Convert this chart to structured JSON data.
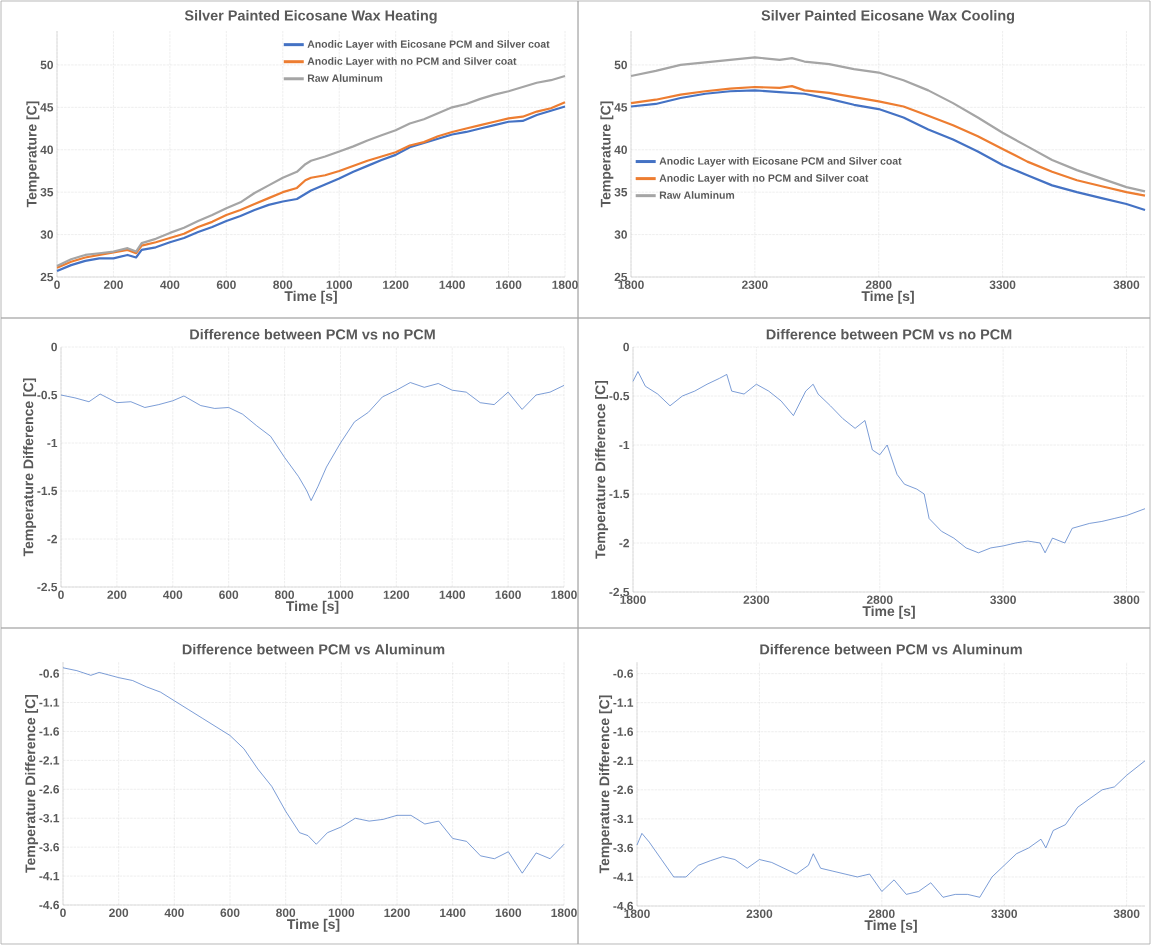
{
  "chart_data": [
    {
      "type": "line",
      "title": "Silver Painted Eicosane Wax Heating",
      "xlabel": "Time [s]",
      "ylabel": "Temperature [C]",
      "xlim": [
        0,
        1800
      ],
      "ylim": [
        25,
        54
      ],
      "xticks": [
        0,
        200,
        400,
        600,
        800,
        1000,
        1200,
        1400,
        1600,
        1800
      ],
      "yticks": [
        25,
        30,
        35,
        40,
        45,
        50
      ],
      "grid": true,
      "legend": "top right",
      "marker": "none",
      "series": [
        {
          "name": "Anodic Layer with Eicosane PCM and Silver coat",
          "color": "#4472c4",
          "x": [
            0,
            50,
            100,
            150,
            200,
            250,
            280,
            300,
            350,
            400,
            450,
            500,
            550,
            600,
            650,
            700,
            750,
            800,
            850,
            900,
            950,
            1000,
            1050,
            1100,
            1150,
            1200,
            1250,
            1300,
            1350,
            1400,
            1450,
            1500,
            1550,
            1600,
            1650,
            1700,
            1750,
            1800
          ],
          "values": [
            25.7,
            26.4,
            26.9,
            27.2,
            27.2,
            27.6,
            27.3,
            28.2,
            28.5,
            29.1,
            29.6,
            30.3,
            30.9,
            31.6,
            32.2,
            32.9,
            33.5,
            33.9,
            34.2,
            35.2,
            35.9,
            36.6,
            37.4,
            38.1,
            38.8,
            39.4,
            40.3,
            40.8,
            41.3,
            41.8,
            42.1,
            42.5,
            42.9,
            43.3,
            43.4,
            44.1,
            44.6,
            45.1
          ]
        },
        {
          "name": "Anodic Layer with no PCM and Silver coat",
          "color": "#ed7d31",
          "x": [
            0,
            50,
            100,
            150,
            200,
            250,
            280,
            300,
            350,
            400,
            450,
            500,
            550,
            600,
            650,
            700,
            750,
            800,
            850,
            880,
            900,
            950,
            1000,
            1050,
            1100,
            1150,
            1200,
            1250,
            1300,
            1350,
            1400,
            1450,
            1500,
            1550,
            1600,
            1650,
            1700,
            1750,
            1800
          ],
          "values": [
            26.1,
            26.8,
            27.3,
            27.6,
            27.9,
            28.2,
            27.8,
            28.7,
            29.1,
            29.6,
            30.1,
            30.9,
            31.5,
            32.3,
            32.9,
            33.6,
            34.3,
            35.0,
            35.5,
            36.4,
            36.7,
            37.0,
            37.5,
            38.1,
            38.7,
            39.2,
            39.7,
            40.5,
            40.9,
            41.6,
            42.1,
            42.5,
            42.9,
            43.3,
            43.7,
            43.9,
            44.5,
            44.9,
            45.6
          ]
        },
        {
          "name": "Raw Aluminum",
          "color": "#a5a5a5",
          "x": [
            0,
            50,
            100,
            150,
            200,
            250,
            280,
            300,
            350,
            400,
            450,
            500,
            550,
            600,
            650,
            700,
            750,
            800,
            850,
            880,
            900,
            950,
            1000,
            1050,
            1100,
            1150,
            1200,
            1250,
            1300,
            1350,
            1400,
            1450,
            1500,
            1550,
            1600,
            1650,
            1700,
            1750,
            1800
          ],
          "values": [
            26.3,
            27.1,
            27.6,
            27.8,
            28.0,
            28.4,
            28.0,
            29.0,
            29.5,
            30.2,
            30.8,
            31.6,
            32.3,
            33.1,
            33.8,
            34.9,
            35.8,
            36.7,
            37.4,
            38.3,
            38.7,
            39.2,
            39.8,
            40.4,
            41.1,
            41.7,
            42.3,
            43.1,
            43.6,
            44.3,
            45.0,
            45.4,
            46.0,
            46.5,
            46.9,
            47.4,
            47.9,
            48.2,
            48.7
          ]
        }
      ]
    },
    {
      "type": "line",
      "title": "Silver Painted Eicosane Wax Cooling",
      "xlabel": "Time [s]",
      "ylabel": "Temperature [C]",
      "xlim": [
        1800,
        3875
      ],
      "ylim": [
        25,
        54
      ],
      "xticks": [
        1800,
        2300,
        2800,
        3300,
        3800
      ],
      "yticks": [
        25,
        30,
        35,
        40,
        45,
        50
      ],
      "grid": true,
      "legend": "left",
      "marker": "none",
      "series": [
        {
          "name": "Anodic Layer with Eicosane PCM and Silver coat",
          "color": "#4472c4",
          "x": [
            1800,
            1900,
            2000,
            2100,
            2200,
            2300,
            2400,
            2500,
            2600,
            2700,
            2800,
            2900,
            3000,
            3100,
            3200,
            3300,
            3400,
            3500,
            3600,
            3700,
            3800,
            3875
          ],
          "values": [
            45.1,
            45.4,
            46.1,
            46.6,
            46.9,
            47.0,
            46.8,
            46.6,
            46.0,
            45.3,
            44.8,
            43.8,
            42.4,
            41.2,
            39.8,
            38.2,
            37.0,
            35.8,
            35.0,
            34.3,
            33.6,
            32.9
          ]
        },
        {
          "name": "Anodic Layer with no PCM and Silver coat",
          "color": "#ed7d31",
          "x": [
            1800,
            1900,
            2000,
            2100,
            2200,
            2300,
            2400,
            2450,
            2500,
            2600,
            2700,
            2800,
            2900,
            3000,
            3100,
            3200,
            3300,
            3400,
            3500,
            3600,
            3700,
            3800,
            3875
          ],
          "values": [
            45.5,
            45.9,
            46.5,
            46.9,
            47.2,
            47.4,
            47.3,
            47.5,
            47.0,
            46.7,
            46.2,
            45.7,
            45.1,
            44.0,
            42.9,
            41.6,
            40.1,
            38.6,
            37.4,
            36.4,
            35.7,
            35.0,
            34.6
          ]
        },
        {
          "name": "Raw Aluminum",
          "color": "#a5a5a5",
          "x": [
            1800,
            1900,
            2000,
            2100,
            2200,
            2300,
            2400,
            2450,
            2500,
            2600,
            2700,
            2800,
            2900,
            3000,
            3100,
            3200,
            3300,
            3400,
            3500,
            3600,
            3700,
            3800,
            3875
          ],
          "values": [
            48.7,
            49.3,
            50.0,
            50.3,
            50.6,
            50.9,
            50.6,
            50.8,
            50.4,
            50.1,
            49.5,
            49.1,
            48.2,
            47.0,
            45.5,
            43.8,
            42.0,
            40.4,
            38.8,
            37.6,
            36.6,
            35.6,
            35.1
          ]
        }
      ]
    },
    {
      "type": "line",
      "title": "Difference between PCM vs no PCM",
      "xlabel": "Time [s]",
      "ylabel": "Temperature Difference [C]",
      "xlim": [
        0,
        1800
      ],
      "ylim": [
        -2.5,
        0
      ],
      "xticks": [
        0,
        200,
        400,
        600,
        800,
        1000,
        1200,
        1400,
        1600,
        1800
      ],
      "yticks": [
        -2.5,
        -2,
        -1.5,
        -1,
        -0.5,
        0
      ],
      "grid": true,
      "marker": "none",
      "series": [
        {
          "color": "#4472c4",
          "x": [
            0,
            50,
            100,
            140,
            200,
            250,
            300,
            350,
            400,
            440,
            500,
            550,
            600,
            650,
            700,
            750,
            800,
            850,
            880,
            895,
            920,
            950,
            1000,
            1050,
            1100,
            1150,
            1200,
            1250,
            1300,
            1350,
            1400,
            1450,
            1500,
            1550,
            1600,
            1650,
            1700,
            1750,
            1800
          ],
          "values": [
            -0.5,
            -0.53,
            -0.57,
            -0.49,
            -0.58,
            -0.57,
            -0.63,
            -0.6,
            -0.56,
            -0.51,
            -0.61,
            -0.64,
            -0.63,
            -0.7,
            -0.82,
            -0.93,
            -1.15,
            -1.35,
            -1.5,
            -1.6,
            -1.45,
            -1.25,
            -1.0,
            -0.78,
            -0.68,
            -0.52,
            -0.45,
            -0.37,
            -0.42,
            -0.38,
            -0.45,
            -0.47,
            -0.58,
            -0.6,
            -0.47,
            -0.65,
            -0.5,
            -0.47,
            -0.4
          ]
        }
      ]
    },
    {
      "type": "line",
      "title": "Difference between PCM vs no PCM",
      "xlabel": "Time [s]",
      "ylabel": "Temperature Difference [C]",
      "xlim": [
        1800,
        3875
      ],
      "ylim": [
        -2.5,
        0
      ],
      "xticks": [
        1800,
        2300,
        2800,
        3300,
        3800
      ],
      "yticks": [
        -2.5,
        -2,
        -1.5,
        -1,
        -0.5,
        0
      ],
      "grid": true,
      "marker": "none",
      "series": [
        {
          "color": "#4472c4",
          "x": [
            1800,
            1820,
            1850,
            1900,
            1950,
            2000,
            2050,
            2100,
            2150,
            2180,
            2200,
            2250,
            2300,
            2350,
            2400,
            2450,
            2500,
            2530,
            2550,
            2600,
            2650,
            2700,
            2740,
            2770,
            2800,
            2830,
            2870,
            2900,
            2950,
            2980,
            3000,
            3050,
            3100,
            3150,
            3200,
            3250,
            3300,
            3350,
            3400,
            3450,
            3470,
            3500,
            3550,
            3580,
            3650,
            3700,
            3750,
            3800,
            3875
          ],
          "values": [
            -0.35,
            -0.25,
            -0.4,
            -0.48,
            -0.6,
            -0.5,
            -0.45,
            -0.38,
            -0.32,
            -0.28,
            -0.45,
            -0.48,
            -0.38,
            -0.45,
            -0.55,
            -0.7,
            -0.45,
            -0.38,
            -0.48,
            -0.6,
            -0.73,
            -0.83,
            -0.75,
            -1.05,
            -1.1,
            -1.0,
            -1.3,
            -1.4,
            -1.45,
            -1.5,
            -1.75,
            -1.88,
            -1.95,
            -2.05,
            -2.1,
            -2.05,
            -2.03,
            -2.0,
            -1.98,
            -2.0,
            -2.1,
            -1.95,
            -2.0,
            -1.85,
            -1.8,
            -1.78,
            -1.75,
            -1.72,
            -1.65
          ]
        }
      ]
    },
    {
      "type": "line",
      "title": "Difference between PCM vs Aluminum",
      "xlabel": "Time [s]",
      "ylabel": "Temperature Difference [C]",
      "xlim": [
        0,
        1800
      ],
      "ylim": [
        -4.6,
        -0.4
      ],
      "xticks": [
        0,
        200,
        400,
        600,
        800,
        1000,
        1200,
        1400,
        1600,
        1800
      ],
      "yticks": [
        -4.6,
        -4.1,
        -3.6,
        -3.1,
        -2.6,
        -2.1,
        -1.6,
        -1.1,
        -0.6
      ],
      "grid": true,
      "marker": "none",
      "series": [
        {
          "color": "#4472c4",
          "x": [
            0,
            50,
            100,
            130,
            200,
            250,
            300,
            350,
            400,
            450,
            500,
            550,
            600,
            650,
            700,
            750,
            800,
            850,
            880,
            910,
            950,
            1000,
            1050,
            1100,
            1150,
            1200,
            1250,
            1300,
            1350,
            1400,
            1450,
            1500,
            1550,
            1600,
            1650,
            1700,
            1750,
            1800
          ],
          "values": [
            -0.5,
            -0.55,
            -0.63,
            -0.58,
            -0.67,
            -0.72,
            -0.83,
            -0.92,
            -1.07,
            -1.22,
            -1.37,
            -1.52,
            -1.67,
            -1.9,
            -2.25,
            -2.55,
            -2.98,
            -3.35,
            -3.4,
            -3.55,
            -3.35,
            -3.25,
            -3.1,
            -3.15,
            -3.12,
            -3.05,
            -3.05,
            -3.2,
            -3.15,
            -3.45,
            -3.5,
            -3.75,
            -3.8,
            -3.68,
            -4.05,
            -3.7,
            -3.8,
            -3.55
          ]
        }
      ]
    },
    {
      "type": "line",
      "title": "Difference between PCM vs Aluminum",
      "xlabel": "Time [s]",
      "ylabel": "Temperature Difference [C]",
      "xlim": [
        1800,
        3875
      ],
      "ylim": [
        -4.6,
        -0.4
      ],
      "xticks": [
        1800,
        2300,
        2800,
        3300,
        3800
      ],
      "yticks": [
        -4.6,
        -4.1,
        -3.6,
        -3.1,
        -2.6,
        -2.1,
        -1.6,
        -1.1,
        -0.6
      ],
      "grid": true,
      "marker": "none",
      "series": [
        {
          "color": "#4472c4",
          "x": [
            1800,
            1820,
            1850,
            1900,
            1950,
            2000,
            2050,
            2100,
            2150,
            2200,
            2250,
            2300,
            2350,
            2400,
            2450,
            2500,
            2520,
            2550,
            2600,
            2650,
            2700,
            2750,
            2800,
            2850,
            2900,
            2950,
            3000,
            3050,
            3100,
            3150,
            3200,
            3250,
            3300,
            3350,
            3400,
            3450,
            3470,
            3500,
            3550,
            3600,
            3650,
            3700,
            3750,
            3800,
            3875
          ],
          "values": [
            -3.55,
            -3.35,
            -3.5,
            -3.8,
            -4.1,
            -4.1,
            -3.9,
            -3.82,
            -3.75,
            -3.8,
            -3.95,
            -3.8,
            -3.85,
            -3.95,
            -4.05,
            -3.9,
            -3.7,
            -3.95,
            -4.0,
            -4.05,
            -4.1,
            -4.05,
            -4.35,
            -4.15,
            -4.4,
            -4.35,
            -4.2,
            -4.45,
            -4.4,
            -4.4,
            -4.45,
            -4.1,
            -3.9,
            -3.7,
            -3.6,
            -3.45,
            -3.6,
            -3.3,
            -3.2,
            -2.9,
            -2.75,
            -2.6,
            -2.55,
            -2.35,
            -2.1
          ]
        }
      ]
    }
  ]
}
